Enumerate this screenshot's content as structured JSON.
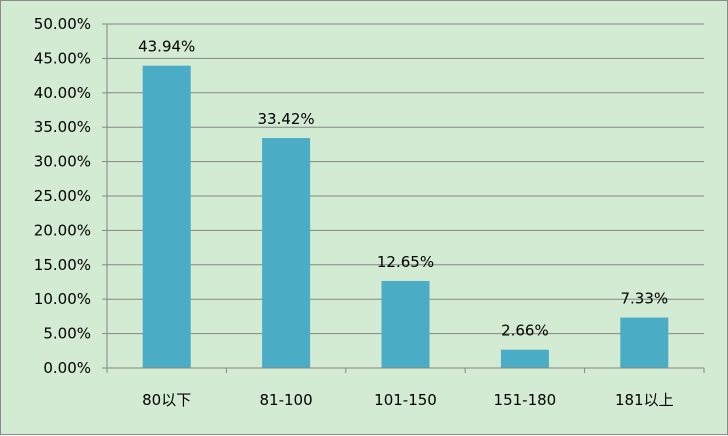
{
  "chart_data": {
    "type": "bar",
    "categories": [
      "80以下",
      "81-100",
      "101-150",
      "151-180",
      "181以上"
    ],
    "values": [
      43.94,
      33.42,
      12.65,
      2.66,
      7.33
    ],
    "data_labels": [
      "43.94%",
      "33.42%",
      "12.65%",
      "2.66%",
      "7.33%"
    ],
    "ylim": [
      0,
      50
    ],
    "yticks": [
      0,
      5,
      10,
      15,
      20,
      25,
      30,
      35,
      40,
      45,
      50
    ],
    "ytick_labels": [
      "0.00%",
      "5.00%",
      "10.00%",
      "15.00%",
      "20.00%",
      "25.00%",
      "30.00%",
      "35.00%",
      "40.00%",
      "45.00%",
      "50.00%"
    ],
    "grid": true,
    "legend": "none",
    "colors": {
      "bar": "#4bacc6",
      "background": "#d3ead3",
      "axis": "#868686"
    }
  }
}
